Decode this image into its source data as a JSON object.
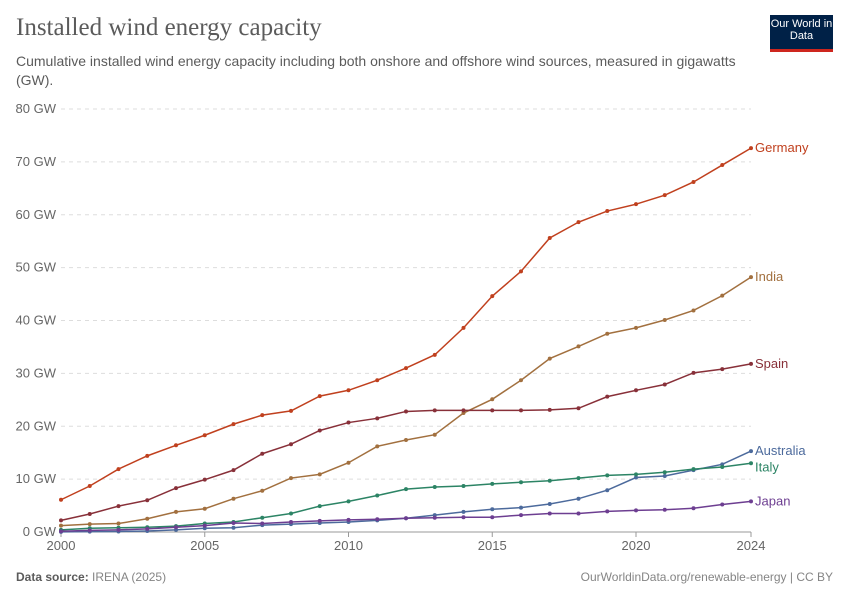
{
  "header": {
    "title": "Installed wind energy capacity",
    "subtitle": "Cumulative installed wind energy capacity including both onshore and offshore wind sources, measured in gigawatts (GW).",
    "logo_text": "Our World in Data"
  },
  "footer": {
    "source_label": "Data source:",
    "source": "IRENA (2025)",
    "url_license": "OurWorldinData.org/renewable-energy | CC BY"
  },
  "chart_data": {
    "type": "line",
    "title": "Installed wind energy capacity",
    "xlabel": "",
    "ylabel": "",
    "xlim": [
      2000,
      2024
    ],
    "ylim": [
      0,
      80
    ],
    "grid": "horizontal dashed",
    "legend": "line-end labels right",
    "x_ticks": [
      "2000",
      "2005",
      "2010",
      "2015",
      "2020",
      "2024"
    ],
    "y_ticks": [
      "0 GW",
      "10 GW",
      "20 GW",
      "30 GW",
      "40 GW",
      "50 GW",
      "60 GW",
      "70 GW",
      "80 GW"
    ],
    "x": [
      2000,
      2001,
      2002,
      2003,
      2004,
      2005,
      2006,
      2007,
      2008,
      2009,
      2010,
      2011,
      2012,
      2013,
      2014,
      2015,
      2016,
      2017,
      2018,
      2019,
      2020,
      2021,
      2022,
      2023,
      2024
    ],
    "series": [
      {
        "name": "Germany",
        "color": "#c0401e",
        "values": [
          6.1,
          8.7,
          11.9,
          14.4,
          16.4,
          18.3,
          20.4,
          22.1,
          22.9,
          25.7,
          26.8,
          28.7,
          31.0,
          33.5,
          38.6,
          44.6,
          49.3,
          55.6,
          58.6,
          60.7,
          62.0,
          63.7,
          66.2,
          69.4,
          72.6
        ]
      },
      {
        "name": "India",
        "color": "#a2703f",
        "values": [
          1.2,
          1.5,
          1.6,
          2.5,
          3.8,
          4.4,
          6.3,
          7.8,
          10.2,
          10.9,
          13.1,
          16.2,
          17.4,
          18.4,
          22.5,
          25.1,
          28.7,
          32.8,
          35.1,
          37.5,
          38.6,
          40.1,
          41.9,
          44.7,
          48.2
        ]
      },
      {
        "name": "Spain",
        "color": "#883039",
        "values": [
          2.2,
          3.4,
          4.9,
          6.0,
          8.3,
          9.9,
          11.7,
          14.8,
          16.6,
          19.2,
          20.7,
          21.5,
          22.8,
          23.0,
          23.0,
          23.0,
          23.0,
          23.1,
          23.4,
          25.6,
          26.8,
          27.9,
          30.1,
          30.8,
          31.8
        ]
      },
      {
        "name": "Australia",
        "color": "#4c6a9c",
        "values": [
          0.03,
          0.07,
          0.1,
          0.2,
          0.4,
          0.7,
          0.8,
          1.3,
          1.5,
          1.7,
          1.9,
          2.2,
          2.6,
          3.2,
          3.8,
          4.3,
          4.6,
          5.3,
          6.3,
          7.9,
          10.3,
          10.6,
          11.7,
          12.8,
          15.3
        ]
      },
      {
        "name": "Italy",
        "color": "#2c8465",
        "values": [
          0.4,
          0.7,
          0.8,
          0.9,
          1.1,
          1.6,
          1.9,
          2.7,
          3.5,
          4.9,
          5.8,
          6.9,
          8.1,
          8.5,
          8.7,
          9.1,
          9.4,
          9.7,
          10.2,
          10.7,
          10.9,
          11.3,
          11.9,
          12.3,
          13.0
        ]
      },
      {
        "name": "Japan",
        "color": "#6d3e91",
        "values": [
          0.14,
          0.3,
          0.4,
          0.6,
          0.9,
          1.2,
          1.7,
          1.6,
          1.9,
          2.1,
          2.3,
          2.4,
          2.6,
          2.7,
          2.8,
          2.8,
          3.2,
          3.5,
          3.5,
          3.9,
          4.1,
          4.2,
          4.5,
          5.2,
          5.8
        ]
      }
    ]
  }
}
